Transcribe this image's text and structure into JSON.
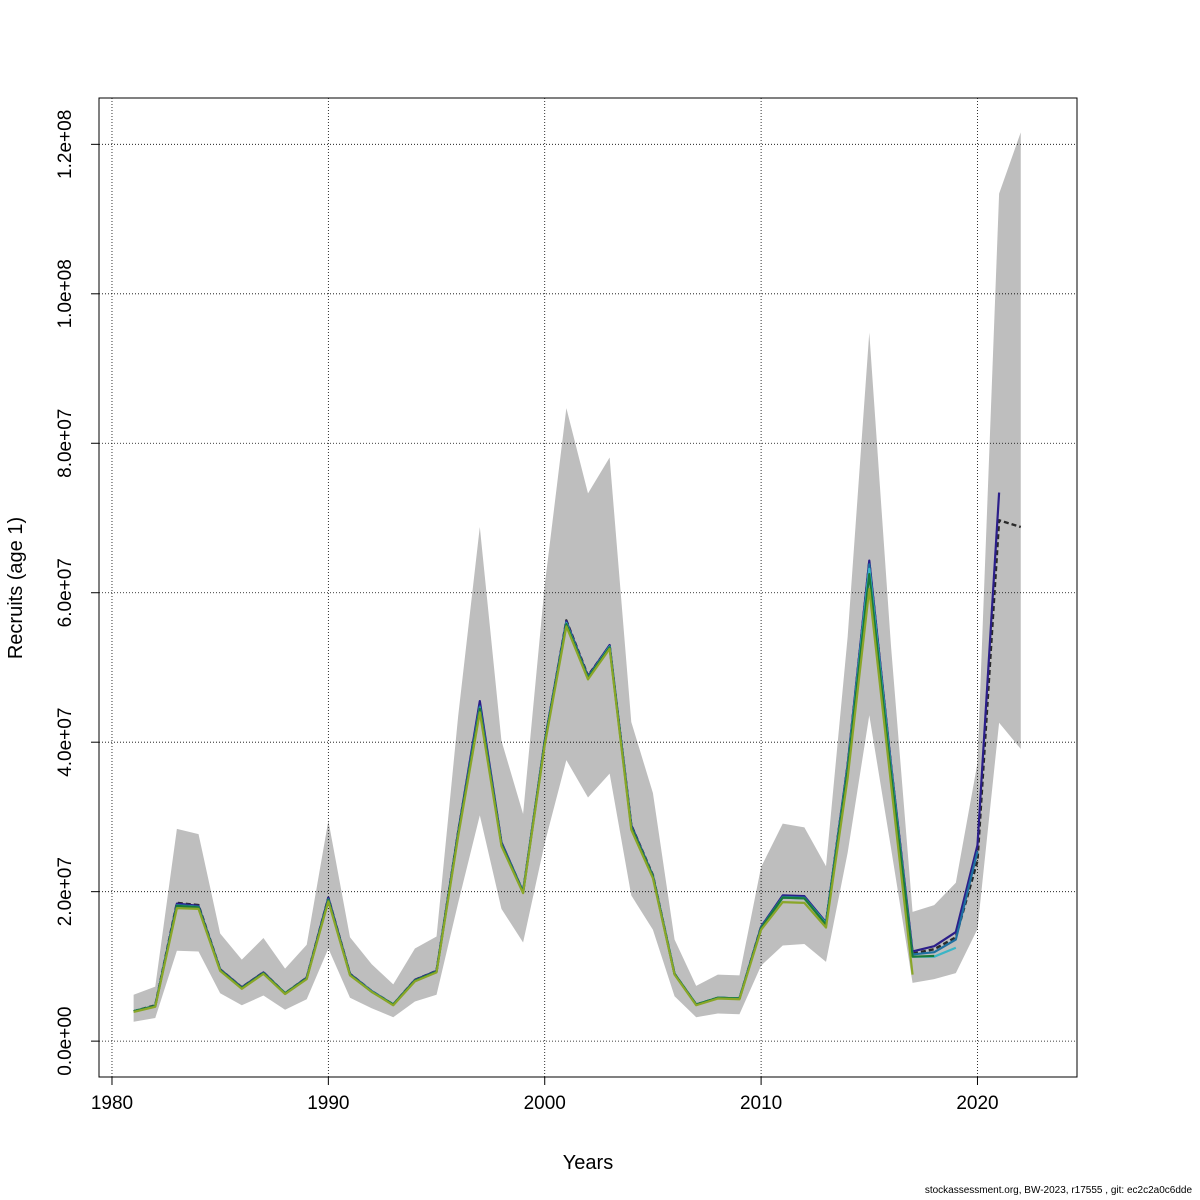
{
  "chart_data": {
    "type": "line",
    "xlabel": "Years",
    "ylabel": "Recruits (age 1)",
    "xlim": [
      1979.4,
      2024.6
    ],
    "ylim": [
      -4800000.0,
      126200000.0
    ],
    "x_ticks": [
      1980,
      1990,
      2000,
      2010,
      2020
    ],
    "x_tick_labels": [
      "1980",
      "1990",
      "2000",
      "2010",
      "2020"
    ],
    "y_ticks": [
      0,
      20000000,
      40000000,
      60000000,
      80000000,
      100000000,
      120000000
    ],
    "y_tick_labels": [
      "0.0e+00",
      "2.0e+07",
      "4.0e+07",
      "6.0e+07",
      "8.0e+07",
      "1.0e+08",
      "1.2e+08"
    ],
    "grid": true,
    "band": {
      "x": [
        1981,
        1982,
        1983,
        1984,
        1985,
        1986,
        1987,
        1988,
        1989,
        1990,
        1991,
        1992,
        1993,
        1994,
        1995,
        1996,
        1997,
        1998,
        1999,
        2000,
        2001,
        2002,
        2003,
        2004,
        2005,
        2006,
        2007,
        2008,
        2009,
        2010,
        2011,
        2012,
        2013,
        2014,
        2015,
        2016,
        2017,
        2018,
        2019,
        2020,
        2021,
        2022
      ],
      "lower": [
        2600000.0,
        3100000.0,
        12100000.0,
        12000000.0,
        6400000.0,
        4800000.0,
        6100000.0,
        4200000.0,
        5600000.0,
        12400000.0,
        5800000.0,
        4400000.0,
        3200000.0,
        5300000.0,
        6200000.0,
        18500000.0,
        30200000.0,
        17700000.0,
        13200000.0,
        26500000.0,
        37600000.0,
        32600000.0,
        35800000.0,
        19500000.0,
        14900000.0,
        6000000.0,
        3200000.0,
        3700000.0,
        3600000.0,
        10100000.0,
        12800000.0,
        13000000.0,
        10600000.0,
        25200000.0,
        43600000.0,
        25900000.0,
        7800000.0,
        8300000.0,
        9100000.0,
        15000000.0,
        42600000.0,
        39100000.0
      ],
      "upper": [
        6200000.0,
        7300000.0,
        28400000.0,
        27700000.0,
        14400000.0,
        10900000.0,
        13800000.0,
        9700000.0,
        12900000.0,
        29500000.0,
        13900000.0,
        10300000.0,
        7600000.0,
        12400000.0,
        14000000.0,
        43500000.0,
        68800000.0,
        40200000.0,
        30400000.0,
        61000000.0,
        84700000.0,
        73300000.0,
        78100000.0,
        42700000.0,
        33200000.0,
        13600000.0,
        7400000.0,
        8900000.0,
        8800000.0,
        23300000.0,
        29100000.0,
        28600000.0,
        23400000.0,
        54100000.0,
        94800000.0,
        53000000.0,
        17300000.0,
        18200000.0,
        21200000.0,
        37200000.0,
        113400000.0,
        121600000.0
      ]
    },
    "series": [
      {
        "color": "#2a2a2a",
        "dashed": true,
        "x": [
          1981,
          1982,
          1983,
          1984,
          1985,
          1986,
          1987,
          1988,
          1989,
          1990,
          1991,
          1992,
          1993,
          1994,
          1995,
          1996,
          1997,
          1998,
          1999,
          2000,
          2001,
          2002,
          2003,
          2004,
          2005,
          2006,
          2007,
          2008,
          2009,
          2010,
          2011,
          2012,
          2013,
          2014,
          2015,
          2016,
          2017,
          2018,
          2019,
          2020,
          2021,
          2022
        ],
        "values": [
          4000000.0,
          4800000.0,
          18500000.0,
          18200000.0,
          9600000.0,
          7200000.0,
          9200000.0,
          6400000.0,
          8500000.0,
          19200000.0,
          9000000.0,
          6700000.0,
          4900000.0,
          8200000.0,
          9400000.0,
          28000000.0,
          45000000.0,
          26500000.0,
          20000000.0,
          40000000.0,
          56300000.0,
          48900000.0,
          52900000.0,
          28900000.0,
          22200000.0,
          9000000.0,
          4900000.0,
          5800000.0,
          5700000.0,
          15300000.0,
          19300000.0,
          19200000.0,
          15800000.0,
          36900000.0,
          64100000.0,
          37000000.0,
          11700000.0,
          12300000.0,
          13900000.0,
          24100000.0,
          69700000.0,
          68800000.0
        ]
      },
      {
        "color": "#2b1e8a",
        "dashed": false,
        "x": [
          1981,
          1982,
          1983,
          1984,
          1985,
          1986,
          1987,
          1988,
          1989,
          1990,
          1991,
          1992,
          1993,
          1994,
          1995,
          1996,
          1997,
          1998,
          1999,
          2000,
          2001,
          2002,
          2003,
          2004,
          2005,
          2006,
          2007,
          2008,
          2009,
          2010,
          2011,
          2012,
          2013,
          2014,
          2015,
          2016,
          2017,
          2018,
          2019,
          2020,
          2021
        ],
        "values": [
          4000000.0,
          4700000.0,
          18400000.0,
          18100000.0,
          9600000.0,
          7200000.0,
          9200000.0,
          6400000.0,
          8500000.0,
          19200000.0,
          9000000.0,
          6700000.0,
          4900000.0,
          8200000.0,
          9400000.0,
          28000000.0,
          45500000.0,
          26600000.0,
          20000000.0,
          40200000.0,
          56200000.0,
          48800000.0,
          53000000.0,
          28900000.0,
          22100000.0,
          9000000.0,
          4900000.0,
          5800000.0,
          5700000.0,
          15300000.0,
          19500000.0,
          19400000.0,
          15900000.0,
          37000000.0,
          64300000.0,
          37100000.0,
          12000000.0,
          12700000.0,
          14600000.0,
          26200000.0,
          73400000.0
        ]
      },
      {
        "color": "#1f6fa0",
        "dashed": false,
        "x": [
          1981,
          1982,
          1983,
          1984,
          1985,
          1986,
          1987,
          1988,
          1989,
          1990,
          1991,
          1992,
          1993,
          1994,
          1995,
          1996,
          1997,
          1998,
          1999,
          2000,
          2001,
          2002,
          2003,
          2004,
          2005,
          2006,
          2007,
          2008,
          2009,
          2010,
          2011,
          2012,
          2013,
          2014,
          2015,
          2016,
          2017,
          2018,
          2019,
          2020
        ],
        "values": [
          4000000.0,
          4700000.0,
          18200000.0,
          18000000.0,
          9500000.0,
          7100000.0,
          9100000.0,
          6400000.0,
          8400000.0,
          19000000.0,
          8900000.0,
          6700000.0,
          4900000.0,
          8100000.0,
          9300000.0,
          27800000.0,
          44800000.0,
          26400000.0,
          20000000.0,
          40000000.0,
          56000000.0,
          48700000.0,
          52800000.0,
          28700000.0,
          22100000.0,
          9000000.0,
          4900000.0,
          5800000.0,
          5700000.0,
          15200000.0,
          19300000.0,
          19200000.0,
          15800000.0,
          36700000.0,
          63800000.0,
          36800000.0,
          11600000.0,
          11900000.0,
          13600000.0,
          25400000.0
        ]
      },
      {
        "color": "#3bb5c6",
        "dashed": false,
        "x": [
          1981,
          1982,
          1983,
          1984,
          1985,
          1986,
          1987,
          1988,
          1989,
          1990,
          1991,
          1992,
          1993,
          1994,
          1995,
          1996,
          1997,
          1998,
          1999,
          2000,
          2001,
          2002,
          2003,
          2004,
          2005,
          2006,
          2007,
          2008,
          2009,
          2010,
          2011,
          2012,
          2013,
          2014,
          2015,
          2016,
          2017,
          2018,
          2019
        ],
        "values": [
          4000000.0,
          4700000.0,
          18100000.0,
          17900000.0,
          9500000.0,
          7100000.0,
          9100000.0,
          6400000.0,
          8400000.0,
          18900000.0,
          8900000.0,
          6600000.0,
          4900000.0,
          8100000.0,
          9300000.0,
          27700000.0,
          44600000.0,
          26300000.0,
          19900000.0,
          39900000.0,
          55900000.0,
          48600000.0,
          52800000.0,
          28600000.0,
          22000000.0,
          9000000.0,
          4900000.0,
          5800000.0,
          5700000.0,
          15100000.0,
          19200000.0,
          19100000.0,
          15700000.0,
          36500000.0,
          63200000.0,
          36400000.0,
          11300000.0,
          11300000.0,
          12500000.0
        ]
      },
      {
        "color": "#1a7a3a",
        "dashed": false,
        "x": [
          1981,
          1982,
          1983,
          1984,
          1985,
          1986,
          1987,
          1988,
          1989,
          1990,
          1991,
          1992,
          1993,
          1994,
          1995,
          1996,
          1997,
          1998,
          1999,
          2000,
          2001,
          2002,
          2003,
          2004,
          2005,
          2006,
          2007,
          2008,
          2009,
          2010,
          2011,
          2012,
          2013,
          2014,
          2015,
          2016,
          2017,
          2018
        ],
        "values": [
          4000000.0,
          4700000.0,
          18100000.0,
          17900000.0,
          9500000.0,
          7100000.0,
          9100000.0,
          6400000.0,
          8400000.0,
          18900000.0,
          8900000.0,
          6600000.0,
          4900000.0,
          8100000.0,
          9300000.0,
          27700000.0,
          44500000.0,
          26300000.0,
          19900000.0,
          39900000.0,
          55800000.0,
          48600000.0,
          52700000.0,
          28600000.0,
          22000000.0,
          9000000.0,
          4900000.0,
          5800000.0,
          5700000.0,
          15100000.0,
          19200000.0,
          19100000.0,
          15600000.0,
          36300000.0,
          62500000.0,
          36000000.0,
          11300000.0,
          11400000.0
        ]
      },
      {
        "color": "#8aa628",
        "dashed": false,
        "x": [
          1981,
          1982,
          1983,
          1984,
          1985,
          1986,
          1987,
          1988,
          1989,
          1990,
          1991,
          1992,
          1993,
          1994,
          1995,
          1996,
          1997,
          1998,
          1999,
          2000,
          2001,
          2002,
          2003,
          2004,
          2005,
          2006,
          2007,
          2008,
          2009,
          2010,
          2011,
          2012,
          2013,
          2014,
          2015,
          2016,
          2017
        ],
        "values": [
          3900000.0,
          4600000.0,
          17800000.0,
          17700000.0,
          9400000.0,
          7000000.0,
          9000000.0,
          6300000.0,
          8300000.0,
          18700000.0,
          8800000.0,
          6600000.0,
          4800000.0,
          8000000.0,
          9200000.0,
          27400000.0,
          44000000.0,
          26100000.0,
          19800000.0,
          39600000.0,
          55500000.0,
          48400000.0,
          52500000.0,
          28300000.0,
          21800000.0,
          8900000.0,
          4800000.0,
          5700000.0,
          5600000.0,
          14900000.0,
          18600000.0,
          18500000.0,
          15200000.0,
          35200000.0,
          60500000.0,
          34500000.0,
          8900000.0
        ]
      }
    ]
  },
  "footer": "stockassessment.org, BW-2023, r17555 , git: ec2c2a0c6dde",
  "colors": {
    "band": "#bebebe",
    "grid": "#000000",
    "axis": "#000000"
  }
}
